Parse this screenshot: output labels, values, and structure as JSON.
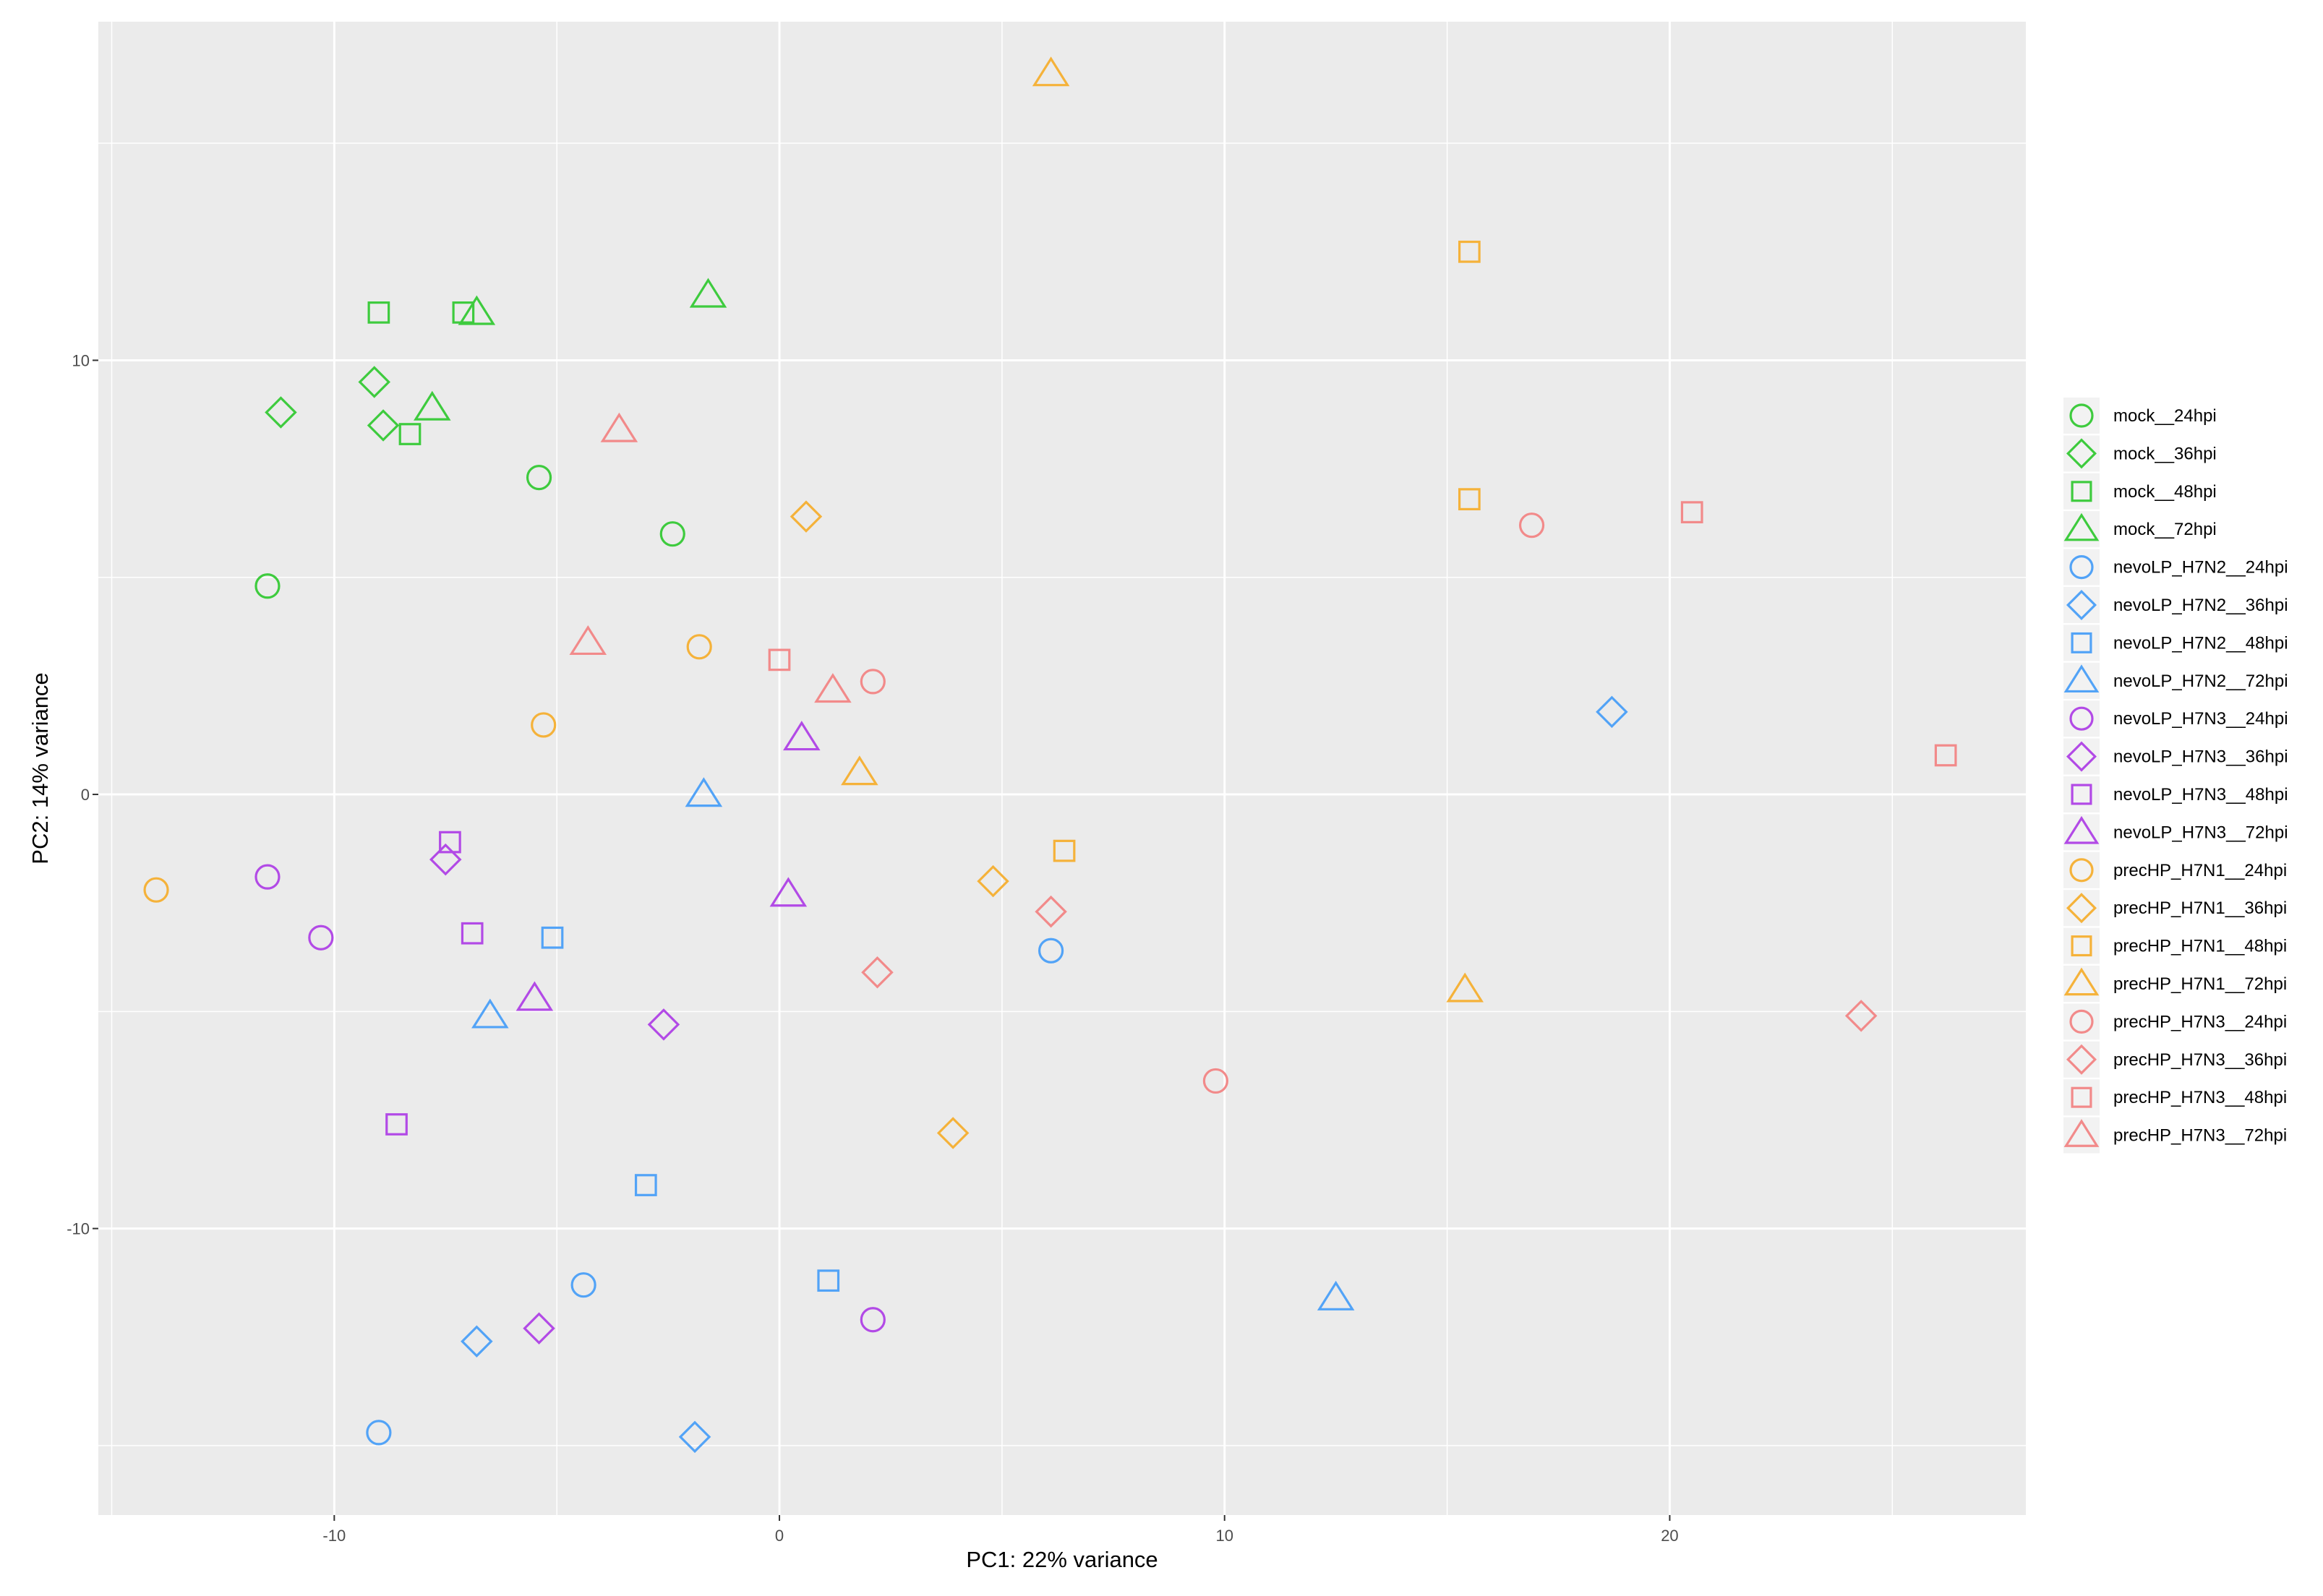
{
  "chart_data": {
    "type": "scatter",
    "xlabel": "PC1: 22% variance",
    "ylabel": "PC2: 14% variance",
    "xlim": [
      -15.3,
      28.0
    ],
    "ylim": [
      -16.6,
      17.8
    ],
    "x_ticks": [
      -10,
      0,
      10,
      20
    ],
    "x_tick_labels": [
      "-10",
      "0",
      "10",
      "20"
    ],
    "y_ticks": [
      -10,
      0,
      10
    ],
    "y_tick_labels": [
      "-10",
      "0",
      "10"
    ],
    "grid": true,
    "legend_position": "right",
    "colors": {
      "mock": "#3ecb3e",
      "nevoLP_H7N2": "#52a3f7",
      "nevoLP_H7N3": "#b24ae6",
      "precHP_H7N1": "#f5b23a",
      "precHP_H7N3": "#f28a8a",
      "panel": "#ebebeb",
      "grid": "#ffffff"
    },
    "series": [
      {
        "name": "mock__24hpi",
        "group": "mock",
        "shape": "circle",
        "points": [
          [
            -11.5,
            4.8
          ],
          [
            -5.4,
            7.3
          ],
          [
            -2.4,
            6.0
          ]
        ]
      },
      {
        "name": "mock__36hpi",
        "group": "mock",
        "shape": "diamond",
        "points": [
          [
            -11.2,
            8.8
          ],
          [
            -9.1,
            9.5
          ],
          [
            -8.9,
            8.5
          ]
        ]
      },
      {
        "name": "mock__48hpi",
        "group": "mock",
        "shape": "square",
        "points": [
          [
            -9.0,
            11.1
          ],
          [
            -7.1,
            11.1
          ],
          [
            -8.3,
            8.3
          ]
        ]
      },
      {
        "name": "mock__72hpi",
        "group": "mock",
        "shape": "triangle",
        "points": [
          [
            -6.8,
            11.1
          ],
          [
            -1.6,
            11.5
          ],
          [
            -7.8,
            8.9
          ]
        ]
      },
      {
        "name": "nevoLP_H7N2__24hpi",
        "group": "nevoLP_H7N2",
        "shape": "circle",
        "points": [
          [
            6.1,
            -3.6
          ],
          [
            -4.4,
            -11.3
          ],
          [
            -9.0,
            -14.7
          ]
        ]
      },
      {
        "name": "nevoLP_H7N2__36hpi",
        "group": "nevoLP_H7N2",
        "shape": "diamond",
        "points": [
          [
            18.7,
            1.9
          ],
          [
            -6.8,
            -12.6
          ],
          [
            -1.9,
            -14.8
          ]
        ]
      },
      {
        "name": "nevoLP_H7N2__48hpi",
        "group": "nevoLP_H7N2",
        "shape": "square",
        "points": [
          [
            -5.1,
            -3.3
          ],
          [
            -3.0,
            -9.0
          ],
          [
            1.1,
            -11.2
          ]
        ]
      },
      {
        "name": "nevoLP_H7N2__72hpi",
        "group": "nevoLP_H7N2",
        "shape": "triangle",
        "points": [
          [
            -1.7,
            0.0
          ],
          [
            -6.5,
            -5.1
          ],
          [
            12.5,
            -11.6
          ]
        ]
      },
      {
        "name": "nevoLP_H7N3__24hpi",
        "group": "nevoLP_H7N3",
        "shape": "circle",
        "points": [
          [
            -11.5,
            -1.9
          ],
          [
            -10.3,
            -3.3
          ],
          [
            2.1,
            -12.1
          ]
        ]
      },
      {
        "name": "nevoLP_H7N3__36hpi",
        "group": "nevoLP_H7N3",
        "shape": "diamond",
        "points": [
          [
            -7.5,
            -1.5
          ],
          [
            -2.6,
            -5.3
          ],
          [
            -5.4,
            -12.3
          ]
        ]
      },
      {
        "name": "nevoLP_H7N3__48hpi",
        "group": "nevoLP_H7N3",
        "shape": "square",
        "points": [
          [
            -7.4,
            -1.1
          ],
          [
            -6.9,
            -3.2
          ],
          [
            -8.6,
            -7.6
          ]
        ]
      },
      {
        "name": "nevoLP_H7N3__72hpi",
        "group": "nevoLP_H7N3",
        "shape": "triangle",
        "points": [
          [
            0.5,
            1.3
          ],
          [
            0.2,
            -2.3
          ],
          [
            -5.5,
            -4.7
          ]
        ]
      },
      {
        "name": "precHP_H7N1__24hpi",
        "group": "precHP_H7N1",
        "shape": "circle",
        "points": [
          [
            -14.0,
            -2.2
          ],
          [
            -5.3,
            1.6
          ],
          [
            -1.8,
            3.4
          ]
        ]
      },
      {
        "name": "precHP_H7N1__36hpi",
        "group": "precHP_H7N1",
        "shape": "diamond",
        "points": [
          [
            0.6,
            6.4
          ],
          [
            4.8,
            -2.0
          ],
          [
            3.9,
            -7.8
          ]
        ]
      },
      {
        "name": "precHP_H7N1__48hpi",
        "group": "precHP_H7N1",
        "shape": "square",
        "points": [
          [
            15.5,
            12.5
          ],
          [
            15.5,
            6.8
          ],
          [
            6.4,
            -1.3
          ]
        ]
      },
      {
        "name": "precHP_H7N1__72hpi",
        "group": "precHP_H7N1",
        "shape": "triangle",
        "points": [
          [
            6.1,
            16.6
          ],
          [
            1.8,
            0.5
          ],
          [
            15.4,
            -4.5
          ]
        ]
      },
      {
        "name": "precHP_H7N3__24hpi",
        "group": "precHP_H7N3",
        "shape": "circle",
        "points": [
          [
            16.9,
            6.2
          ],
          [
            2.1,
            2.6
          ],
          [
            9.8,
            -6.6
          ]
        ]
      },
      {
        "name": "precHP_H7N3__36hpi",
        "group": "precHP_H7N3",
        "shape": "diamond",
        "points": [
          [
            6.1,
            -2.7
          ],
          [
            2.2,
            -4.1
          ],
          [
            24.3,
            -5.1
          ]
        ]
      },
      {
        "name": "precHP_H7N3__48hpi",
        "group": "precHP_H7N3",
        "shape": "square",
        "points": [
          [
            20.5,
            6.5
          ],
          [
            0.0,
            3.1
          ],
          [
            26.2,
            0.9
          ]
        ]
      },
      {
        "name": "precHP_H7N3__72hpi",
        "group": "precHP_H7N3",
        "shape": "triangle",
        "points": [
          [
            -3.6,
            8.4
          ],
          [
            -4.3,
            3.5
          ],
          [
            1.2,
            2.4
          ]
        ]
      }
    ]
  }
}
